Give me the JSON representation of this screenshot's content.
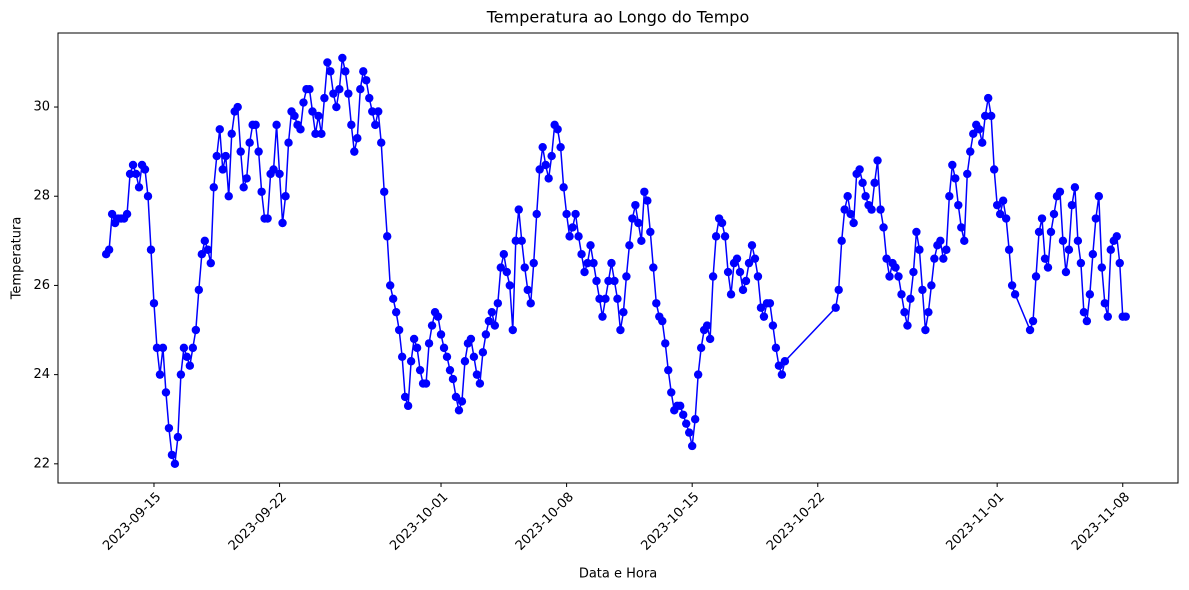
{
  "chart_data": {
    "type": "line",
    "title": "Temperatura ao Longo do Tempo",
    "x_label": "Data e Hora",
    "y_label": "Temperatura",
    "color": "#0000ff",
    "marker": true,
    "xlim": [
      "2023-09-09 15:36",
      "2023-11-11 01:55"
    ],
    "xticks": [
      "2023-09-15",
      "2023-09-22",
      "2023-10-01",
      "2023-10-08",
      "2023-10-15",
      "2023-10-22",
      "2023-11-01",
      "2023-11-08"
    ],
    "ylim": [
      21.57,
      31.66
    ],
    "yticks": [
      22,
      24,
      26,
      28,
      30
    ],
    "x": [
      "2023-09-12 08:00",
      "2023-09-12 12:00",
      "2023-09-12 16:00",
      "2023-09-12 20:00",
      "2023-09-13 00:00",
      "2023-09-13 04:00",
      "2023-09-13 08:00",
      "2023-09-13 12:00",
      "2023-09-13 16:00",
      "2023-09-13 20:00",
      "2023-09-14 00:00",
      "2023-09-14 04:00",
      "2023-09-14 08:00",
      "2023-09-14 12:00",
      "2023-09-14 16:00",
      "2023-09-14 20:00",
      "2023-09-15 00:00",
      "2023-09-15 04:00",
      "2023-09-15 08:00",
      "2023-09-15 12:00",
      "2023-09-15 16:00",
      "2023-09-15 20:00",
      "2023-09-16 00:00",
      "2023-09-16 04:00",
      "2023-09-16 08:00",
      "2023-09-16 12:00",
      "2023-09-16 16:00",
      "2023-09-16 20:00",
      "2023-09-17 00:00",
      "2023-09-17 04:00",
      "2023-09-17 08:00",
      "2023-09-17 12:00",
      "2023-09-17 16:00",
      "2023-09-17 20:00",
      "2023-09-18 00:00",
      "2023-09-18 04:00",
      "2023-09-18 08:00",
      "2023-09-18 12:00",
      "2023-09-18 16:00",
      "2023-09-18 20:00",
      "2023-09-19 00:00",
      "2023-09-19 04:00",
      "2023-09-19 08:00",
      "2023-09-19 12:00",
      "2023-09-19 16:00",
      "2023-09-19 20:00",
      "2023-09-20 00:00",
      "2023-09-20 04:00",
      "2023-09-20 08:00",
      "2023-09-20 12:00",
      "2023-09-20 16:00",
      "2023-09-20 20:00",
      "2023-09-21 00:00",
      "2023-09-21 04:00",
      "2023-09-21 08:00",
      "2023-09-21 12:00",
      "2023-09-21 16:00",
      "2023-09-21 20:00",
      "2023-09-22 00:00",
      "2023-09-22 04:00",
      "2023-09-22 08:00",
      "2023-09-22 12:00",
      "2023-09-22 16:00",
      "2023-09-22 20:00",
      "2023-09-23 00:00",
      "2023-09-23 04:00",
      "2023-09-23 08:00",
      "2023-09-23 12:00",
      "2023-09-23 16:00",
      "2023-09-23 20:00",
      "2023-09-24 00:00",
      "2023-09-24 04:00",
      "2023-09-24 08:00",
      "2023-09-24 12:00",
      "2023-09-24 16:00",
      "2023-09-24 20:00",
      "2023-09-25 00:00",
      "2023-09-25 04:00",
      "2023-09-25 08:00",
      "2023-09-25 12:00",
      "2023-09-25 16:00",
      "2023-09-25 20:00",
      "2023-09-26 00:00",
      "2023-09-26 04:00",
      "2023-09-26 08:00",
      "2023-09-26 12:00",
      "2023-09-26 16:00",
      "2023-09-26 20:00",
      "2023-09-27 00:00",
      "2023-09-27 04:00",
      "2023-09-27 08:00",
      "2023-09-27 12:00",
      "2023-09-27 16:00",
      "2023-09-27 20:00",
      "2023-09-28 00:00",
      "2023-09-28 04:00",
      "2023-09-28 08:00",
      "2023-09-28 12:00",
      "2023-09-28 16:00",
      "2023-09-28 20:00",
      "2023-09-29 00:00",
      "2023-09-29 04:00",
      "2023-09-29 08:00",
      "2023-09-29 12:00",
      "2023-09-29 16:00",
      "2023-09-29 20:00",
      "2023-09-30 00:00",
      "2023-09-30 04:00",
      "2023-09-30 08:00",
      "2023-09-30 12:00",
      "2023-09-30 16:00",
      "2023-09-30 20:00",
      "2023-10-01 00:00",
      "2023-10-01 04:00",
      "2023-10-01 08:00",
      "2023-10-01 12:00",
      "2023-10-01 16:00",
      "2023-10-01 20:00",
      "2023-10-02 00:00",
      "2023-10-02 04:00",
      "2023-10-02 08:00",
      "2023-10-02 12:00",
      "2023-10-02 16:00",
      "2023-10-02 20:00",
      "2023-10-03 00:00",
      "2023-10-03 04:00",
      "2023-10-03 08:00",
      "2023-10-03 12:00",
      "2023-10-03 16:00",
      "2023-10-03 20:00",
      "2023-10-04 00:00",
      "2023-10-04 04:00",
      "2023-10-04 08:00",
      "2023-10-04 12:00",
      "2023-10-04 16:00",
      "2023-10-04 20:00",
      "2023-10-05 00:00",
      "2023-10-05 04:00",
      "2023-10-05 08:00",
      "2023-10-05 12:00",
      "2023-10-05 16:00",
      "2023-10-05 20:00",
      "2023-10-06 00:00",
      "2023-10-06 04:00",
      "2023-10-06 08:00",
      "2023-10-06 12:00",
      "2023-10-06 16:00",
      "2023-10-06 20:00",
      "2023-10-07 00:00",
      "2023-10-07 04:00",
      "2023-10-07 08:00",
      "2023-10-07 12:00",
      "2023-10-07 16:00",
      "2023-10-07 20:00",
      "2023-10-08 00:00",
      "2023-10-08 04:00",
      "2023-10-08 08:00",
      "2023-10-08 12:00",
      "2023-10-08 16:00",
      "2023-10-08 20:00",
      "2023-10-09 00:00",
      "2023-10-09 04:00",
      "2023-10-09 08:00",
      "2023-10-09 12:00",
      "2023-10-09 16:00",
      "2023-10-09 20:00",
      "2023-10-10 00:00",
      "2023-10-10 04:00",
      "2023-10-10 08:00",
      "2023-10-10 12:00",
      "2023-10-10 16:00",
      "2023-10-10 20:00",
      "2023-10-11 00:00",
      "2023-10-11 04:00",
      "2023-10-11 08:00",
      "2023-10-11 12:00",
      "2023-10-11 16:00",
      "2023-10-11 20:00",
      "2023-10-12 00:00",
      "2023-10-12 04:00",
      "2023-10-12 08:00",
      "2023-10-12 12:00",
      "2023-10-12 16:00",
      "2023-10-12 20:00",
      "2023-10-13 00:00",
      "2023-10-13 04:00",
      "2023-10-13 08:00",
      "2023-10-13 12:00",
      "2023-10-13 16:00",
      "2023-10-13 20:00",
      "2023-10-14 00:00",
      "2023-10-14 04:00",
      "2023-10-14 08:00",
      "2023-10-14 12:00",
      "2023-10-14 16:00",
      "2023-10-14 20:00",
      "2023-10-15 00:00",
      "2023-10-15 04:00",
      "2023-10-15 08:00",
      "2023-10-15 12:00",
      "2023-10-15 16:00",
      "2023-10-15 20:00",
      "2023-10-16 00:00",
      "2023-10-16 04:00",
      "2023-10-16 08:00",
      "2023-10-16 12:00",
      "2023-10-16 16:00",
      "2023-10-16 20:00",
      "2023-10-17 00:00",
      "2023-10-17 04:00",
      "2023-10-17 08:00",
      "2023-10-17 12:00",
      "2023-10-17 16:00",
      "2023-10-17 20:00",
      "2023-10-18 00:00",
      "2023-10-18 04:00",
      "2023-10-18 08:00",
      "2023-10-18 12:00",
      "2023-10-18 16:00",
      "2023-10-18 20:00",
      "2023-10-19 00:00",
      "2023-10-19 04:00",
      "2023-10-19 08:00",
      "2023-10-19 12:00",
      "2023-10-19 16:00",
      "2023-10-19 20:00",
      "2023-10-20 00:00",
      "2023-10-20 04:00",
      "2023-10-23 00:00",
      "2023-10-23 04:00",
      "2023-10-23 08:00",
      "2023-10-23 12:00",
      "2023-10-23 16:00",
      "2023-10-23 20:00",
      "2023-10-24 00:00",
      "2023-10-24 04:00",
      "2023-10-24 08:00",
      "2023-10-24 12:00",
      "2023-10-24 16:00",
      "2023-10-24 20:00",
      "2023-10-25 00:00",
      "2023-10-25 04:00",
      "2023-10-25 08:00",
      "2023-10-25 12:00",
      "2023-10-25 16:00",
      "2023-10-25 20:00",
      "2023-10-26 00:00",
      "2023-10-26 04:00",
      "2023-10-26 08:00",
      "2023-10-26 12:00",
      "2023-10-26 16:00",
      "2023-10-26 20:00",
      "2023-10-27 00:00",
      "2023-10-27 04:00",
      "2023-10-27 08:00",
      "2023-10-27 12:00",
      "2023-10-27 16:00",
      "2023-10-27 20:00",
      "2023-10-28 00:00",
      "2023-10-28 04:00",
      "2023-10-28 08:00",
      "2023-10-28 12:00",
      "2023-10-28 16:00",
      "2023-10-28 20:00",
      "2023-10-29 00:00",
      "2023-10-29 04:00",
      "2023-10-29 08:00",
      "2023-10-29 12:00",
      "2023-10-29 16:00",
      "2023-10-29 20:00",
      "2023-10-30 00:00",
      "2023-10-30 04:00",
      "2023-10-30 08:00",
      "2023-10-30 12:00",
      "2023-10-30 16:00",
      "2023-10-30 20:00",
      "2023-10-31 00:00",
      "2023-10-31 04:00",
      "2023-10-31 08:00",
      "2023-10-31 12:00",
      "2023-10-31 16:00",
      "2023-10-31 20:00",
      "2023-11-01 00:00",
      "2023-11-01 04:00",
      "2023-11-01 08:00",
      "2023-11-01 12:00",
      "2023-11-01 16:00",
      "2023-11-01 20:00",
      "2023-11-02 00:00",
      "2023-11-02 20:00",
      "2023-11-03 00:00",
      "2023-11-03 04:00",
      "2023-11-03 08:00",
      "2023-11-03 12:00",
      "2023-11-03 16:00",
      "2023-11-03 20:00",
      "2023-11-04 00:00",
      "2023-11-04 04:00",
      "2023-11-04 08:00",
      "2023-11-04 12:00",
      "2023-11-04 16:00",
      "2023-11-04 20:00",
      "2023-11-05 00:00",
      "2023-11-05 04:00",
      "2023-11-05 08:00",
      "2023-11-05 12:00",
      "2023-11-05 16:00",
      "2023-11-05 20:00",
      "2023-11-06 00:00",
      "2023-11-06 04:00",
      "2023-11-06 08:00",
      "2023-11-06 12:00",
      "2023-11-06 16:00",
      "2023-11-06 20:00",
      "2023-11-07 00:00",
      "2023-11-07 04:00",
      "2023-11-07 08:00",
      "2023-11-07 12:00",
      "2023-11-07 16:00",
      "2023-11-07 20:00",
      "2023-11-08 00:00",
      "2023-11-08 04:00"
    ],
    "values": [
      26.7,
      26.8,
      27.6,
      27.4,
      27.5,
      27.5,
      27.5,
      27.6,
      28.5,
      28.7,
      28.5,
      28.2,
      28.7,
      28.6,
      28.0,
      26.8,
      25.6,
      24.6,
      24.0,
      24.6,
      23.6,
      22.8,
      22.2,
      22.0,
      22.6,
      24.0,
      24.6,
      24.4,
      24.2,
      24.6,
      25.0,
      25.9,
      26.7,
      27.0,
      26.8,
      26.5,
      28.2,
      28.9,
      29.5,
      28.6,
      28.9,
      28.0,
      29.4,
      29.9,
      30.0,
      29.0,
      28.2,
      28.4,
      29.2,
      29.6,
      29.6,
      29.0,
      28.1,
      27.5,
      27.5,
      28.5,
      28.6,
      29.6,
      28.5,
      27.4,
      28.0,
      29.2,
      29.9,
      29.8,
      29.6,
      29.5,
      30.1,
      30.4,
      30.4,
      29.9,
      29.4,
      29.8,
      29.4,
      30.2,
      31.0,
      30.8,
      30.3,
      30.0,
      30.4,
      31.1,
      30.8,
      30.3,
      29.6,
      29.0,
      29.3,
      30.4,
      30.8,
      30.6,
      30.2,
      29.9,
      29.6,
      29.9,
      29.2,
      28.1,
      27.1,
      26.0,
      25.7,
      25.4,
      25.0,
      24.4,
      23.5,
      23.3,
      24.3,
      24.8,
      24.6,
      24.1,
      23.8,
      23.8,
      24.7,
      25.1,
      25.4,
      25.3,
      24.9,
      24.6,
      24.4,
      24.1,
      23.9,
      23.5,
      23.2,
      23.4,
      24.3,
      24.7,
      24.8,
      24.4,
      24.0,
      23.8,
      24.5,
      24.9,
      25.2,
      25.4,
      25.1,
      25.6,
      26.4,
      26.7,
      26.3,
      26.0,
      25.0,
      27.0,
      27.7,
      27.0,
      26.4,
      25.9,
      25.6,
      26.5,
      27.6,
      28.6,
      29.1,
      28.7,
      28.4,
      28.9,
      29.6,
      29.5,
      29.1,
      28.2,
      27.6,
      27.1,
      27.3,
      27.6,
      27.1,
      26.7,
      26.3,
      26.5,
      26.9,
      26.5,
      26.1,
      25.7,
      25.3,
      25.7,
      26.1,
      26.5,
      26.1,
      25.7,
      25.0,
      25.4,
      26.2,
      26.9,
      27.5,
      27.8,
      27.4,
      27.0,
      28.1,
      27.9,
      27.2,
      26.4,
      25.6,
      25.3,
      25.2,
      24.7,
      24.1,
      23.6,
      23.2,
      23.3,
      23.3,
      23.1,
      22.9,
      22.7,
      22.4,
      23.0,
      24.0,
      24.6,
      25.0,
      25.1,
      24.8,
      26.2,
      27.1,
      27.5,
      27.4,
      27.1,
      26.3,
      25.8,
      26.5,
      26.6,
      26.3,
      25.9,
      26.1,
      26.5,
      26.9,
      26.6,
      26.2,
      25.5,
      25.3,
      25.6,
      25.6,
      25.1,
      24.6,
      24.2,
      24.0,
      24.3,
      25.5,
      25.9,
      27.0,
      27.7,
      28.0,
      27.6,
      27.4,
      28.5,
      28.6,
      28.3,
      28.0,
      27.8,
      27.7,
      28.3,
      28.8,
      27.7,
      27.3,
      26.6,
      26.2,
      26.5,
      26.4,
      26.2,
      25.8,
      25.4,
      25.1,
      25.7,
      26.3,
      27.2,
      26.8,
      25.9,
      25.0,
      25.4,
      26.0,
      26.6,
      26.9,
      27.0,
      26.6,
      26.8,
      28.0,
      28.7,
      28.4,
      27.8,
      27.3,
      27.0,
      28.5,
      29.0,
      29.4,
      29.6,
      29.5,
      29.2,
      29.8,
      30.2,
      29.8,
      28.6,
      27.8,
      27.6,
      27.9,
      27.5,
      26.8,
      26.0,
      25.8,
      25.0,
      25.2,
      26.2,
      27.2,
      27.5,
      26.6,
      26.4,
      27.2,
      27.6,
      28.0,
      28.1,
      27.0,
      26.3,
      26.8,
      27.8,
      28.2,
      27.0,
      26.5,
      25.4,
      25.2,
      25.8,
      26.7,
      27.5,
      28.0,
      26.4,
      25.6,
      25.3,
      26.8,
      27.0,
      27.1,
      26.5,
      25.3,
      25.3
    ]
  }
}
